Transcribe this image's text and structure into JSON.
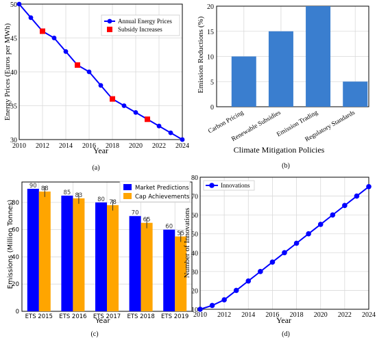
{
  "chart_data": [
    {
      "type": "line",
      "caption": "(a)",
      "xlabel": "Year",
      "ylabel": "Energy Prices (Euros per MWh)",
      "xlim": [
        2010,
        2024
      ],
      "ylim": [
        30,
        50
      ],
      "xticks": [
        2010,
        2012,
        2014,
        2016,
        2018,
        2020,
        2022,
        2024
      ],
      "yticks": [
        30,
        35,
        40,
        45,
        50
      ],
      "grid": true,
      "legend": "top-right",
      "x": [
        2010,
        2011,
        2012,
        2013,
        2014,
        2015,
        2016,
        2017,
        2018,
        2019,
        2020,
        2021,
        2022,
        2023,
        2024
      ],
      "series": [
        {
          "name": "Annual Energy Prices",
          "values": [
            50,
            48,
            46,
            45,
            43,
            41,
            40,
            38,
            36,
            35,
            34,
            33,
            32,
            31,
            30
          ],
          "color": "#0000ff"
        }
      ],
      "markers": {
        "name": "Subsidy Increases",
        "x": [
          2012,
          2015,
          2018,
          2021
        ],
        "y": [
          46,
          41,
          36,
          33
        ],
        "color": "#ff0000"
      }
    },
    {
      "type": "bar",
      "caption": "(b)",
      "xlabel": "Climate Mitigation Policies",
      "ylabel": "Emission Reductions (%)",
      "categories": [
        "Carbon Pricing",
        "Renewable Subsidies",
        "Emission Trading",
        "Regulatory Standards"
      ],
      "values": [
        10,
        15,
        20,
        5
      ],
      "ylim": [
        0,
        20
      ],
      "yticks": [
        0,
        5,
        10,
        15,
        20
      ],
      "grid": true,
      "color": "#3a7ecf"
    },
    {
      "type": "bar",
      "caption": "(c)",
      "xlabel": "Year",
      "ylabel": "Emissions (Million Tonnes)",
      "categories": [
        "ETS 2015",
        "ETS 2016",
        "ETS 2017",
        "ETS 2018",
        "ETS 2019"
      ],
      "ylim": [
        0,
        95
      ],
      "yticks": [
        0,
        20,
        40,
        60,
        80
      ],
      "grid": true,
      "legend": "top-right",
      "series": [
        {
          "name": "Market Predictions",
          "values": [
            90,
            85,
            80,
            70,
            60
          ],
          "color": "#0000ff"
        },
        {
          "name": "Cap Achievements",
          "values": [
            88,
            83,
            78,
            65,
            55
          ],
          "errors": [
            4,
            4,
            4,
            4,
            4
          ],
          "color": "#ffa500"
        }
      ],
      "data_labels": [
        [
          "90",
          "85",
          "80",
          "70",
          "60"
        ],
        [
          "88",
          "83",
          "78",
          "65",
          "55"
        ]
      ]
    },
    {
      "type": "line",
      "caption": "(d)",
      "xlabel": "Year",
      "ylabel": "Number of Innovations",
      "xlim": [
        2010,
        2024
      ],
      "ylim": [
        10,
        80
      ],
      "xticks": [
        2010,
        2012,
        2014,
        2016,
        2018,
        2020,
        2022,
        2024
      ],
      "yticks": [
        10,
        20,
        30,
        40,
        50,
        60,
        70,
        80
      ],
      "grid": true,
      "legend": "top-left",
      "x": [
        2010,
        2011,
        2012,
        2013,
        2014,
        2015,
        2016,
        2017,
        2018,
        2019,
        2020,
        2021,
        2022,
        2023,
        2024
      ],
      "series": [
        {
          "name": "Innovations",
          "values": [
            10,
            12,
            15,
            20,
            25,
            30,
            35,
            40,
            45,
            50,
            55,
            60,
            65,
            70,
            75
          ],
          "color": "#0000ff"
        }
      ]
    }
  ]
}
